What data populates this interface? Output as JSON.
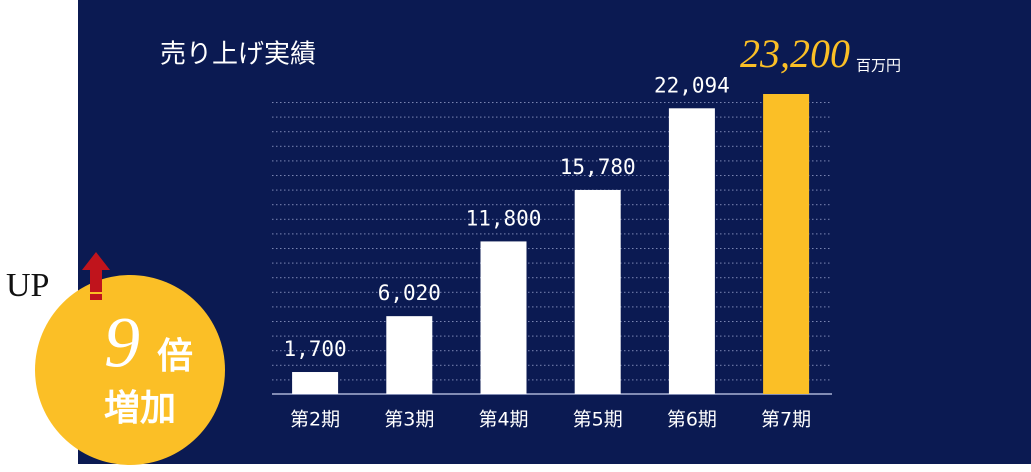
{
  "chart_data": {
    "type": "bar",
    "title": "売り上げ実績",
    "categories": [
      "第2期",
      "第3期",
      "第4期",
      "第5期",
      "第6期",
      "第7期"
    ],
    "values": [
      1700,
      6020,
      11800,
      15780,
      22094,
      23200
    ],
    "value_labels": [
      "1,700",
      "6,020",
      "11,800",
      "15,780",
      "22,094",
      "23,200"
    ],
    "unit": "百万円",
    "colors": [
      "#ffffff",
      "#ffffff",
      "#ffffff",
      "#ffffff",
      "#ffffff",
      "#fbbf26"
    ],
    "badge": {
      "up": "UP",
      "number": "9",
      "suffix": "倍",
      "caption": "増加"
    }
  }
}
